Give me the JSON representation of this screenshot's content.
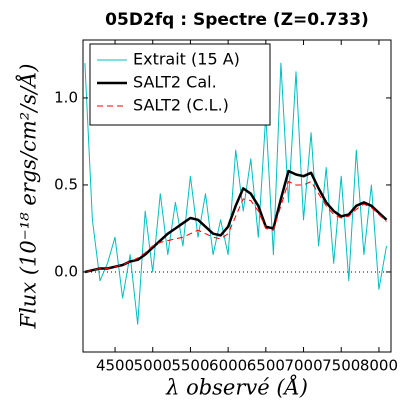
{
  "chart_data": {
    "type": "line",
    "title": "05D2fq : Spectre (Z=0.733)",
    "x_label": "λ observé (Å)",
    "y_label": "Flux (10⁻¹⁸ ergs/cm²/s/Å)",
    "x": [
      4100,
      4200,
      4300,
      4400,
      4500,
      4600,
      4700,
      4800,
      4900,
      5000,
      5100,
      5200,
      5300,
      5400,
      5500,
      5600,
      5700,
      5800,
      5900,
      6000,
      6100,
      6200,
      6300,
      6400,
      6500,
      6600,
      6700,
      6800,
      6900,
      7000,
      7100,
      7200,
      7300,
      7400,
      7500,
      7600,
      7700,
      7800,
      7900,
      8000,
      8100
    ],
    "series": [
      {
        "name": "Extrait (15 A)",
        "color": "#00bfbf",
        "width": 1,
        "dash": false,
        "values": [
          1.2,
          0.3,
          -0.05,
          0.05,
          0.2,
          -0.15,
          0.1,
          -0.3,
          0.35,
          0.0,
          0.45,
          0.1,
          0.4,
          0.15,
          0.55,
          0.2,
          0.45,
          0.1,
          0.3,
          0.1,
          0.7,
          0.35,
          0.65,
          0.2,
          0.9,
          0.1,
          1.2,
          0.4,
          1.15,
          0.3,
          0.8,
          0.15,
          0.6,
          0.05,
          0.55,
          -0.05,
          0.7,
          0.1,
          0.5,
          -0.1,
          0.15
        ]
      },
      {
        "name": "SALT2 Cal.",
        "color": "#000000",
        "width": 2.5,
        "dash": false,
        "values": [
          0.0,
          0.01,
          0.02,
          0.02,
          0.03,
          0.04,
          0.06,
          0.07,
          0.1,
          0.14,
          0.18,
          0.22,
          0.25,
          0.28,
          0.31,
          0.3,
          0.26,
          0.22,
          0.21,
          0.26,
          0.38,
          0.48,
          0.45,
          0.38,
          0.26,
          0.25,
          0.42,
          0.58,
          0.56,
          0.55,
          0.57,
          0.48,
          0.4,
          0.35,
          0.32,
          0.33,
          0.38,
          0.4,
          0.38,
          0.34,
          0.3
        ]
      },
      {
        "name": "SALT2 (C.L.)",
        "color": "#ff0000",
        "width": 1,
        "dash": true,
        "values": [
          0.0,
          0.01,
          0.02,
          0.02,
          0.03,
          0.04,
          0.06,
          0.08,
          0.11,
          0.15,
          0.17,
          0.18,
          0.19,
          0.2,
          0.22,
          0.24,
          0.22,
          0.2,
          0.19,
          0.22,
          0.32,
          0.42,
          0.41,
          0.35,
          0.25,
          0.24,
          0.38,
          0.52,
          0.5,
          0.5,
          0.52,
          0.45,
          0.38,
          0.33,
          0.31,
          0.32,
          0.36,
          0.39,
          0.37,
          0.33,
          0.29
        ]
      }
    ],
    "xlim": [
      4075,
      8160
    ],
    "ylim": [
      -0.46,
      1.333
    ],
    "xticks": [
      4500,
      5000,
      5500,
      6000,
      6500,
      7000,
      7500,
      8000
    ],
    "yticks": [
      {
        "value": 0,
        "label": "0.0"
      },
      0.5,
      {
        "value": 1,
        "label": "1.0"
      }
    ],
    "hline": 0,
    "legend": "upper left"
  }
}
